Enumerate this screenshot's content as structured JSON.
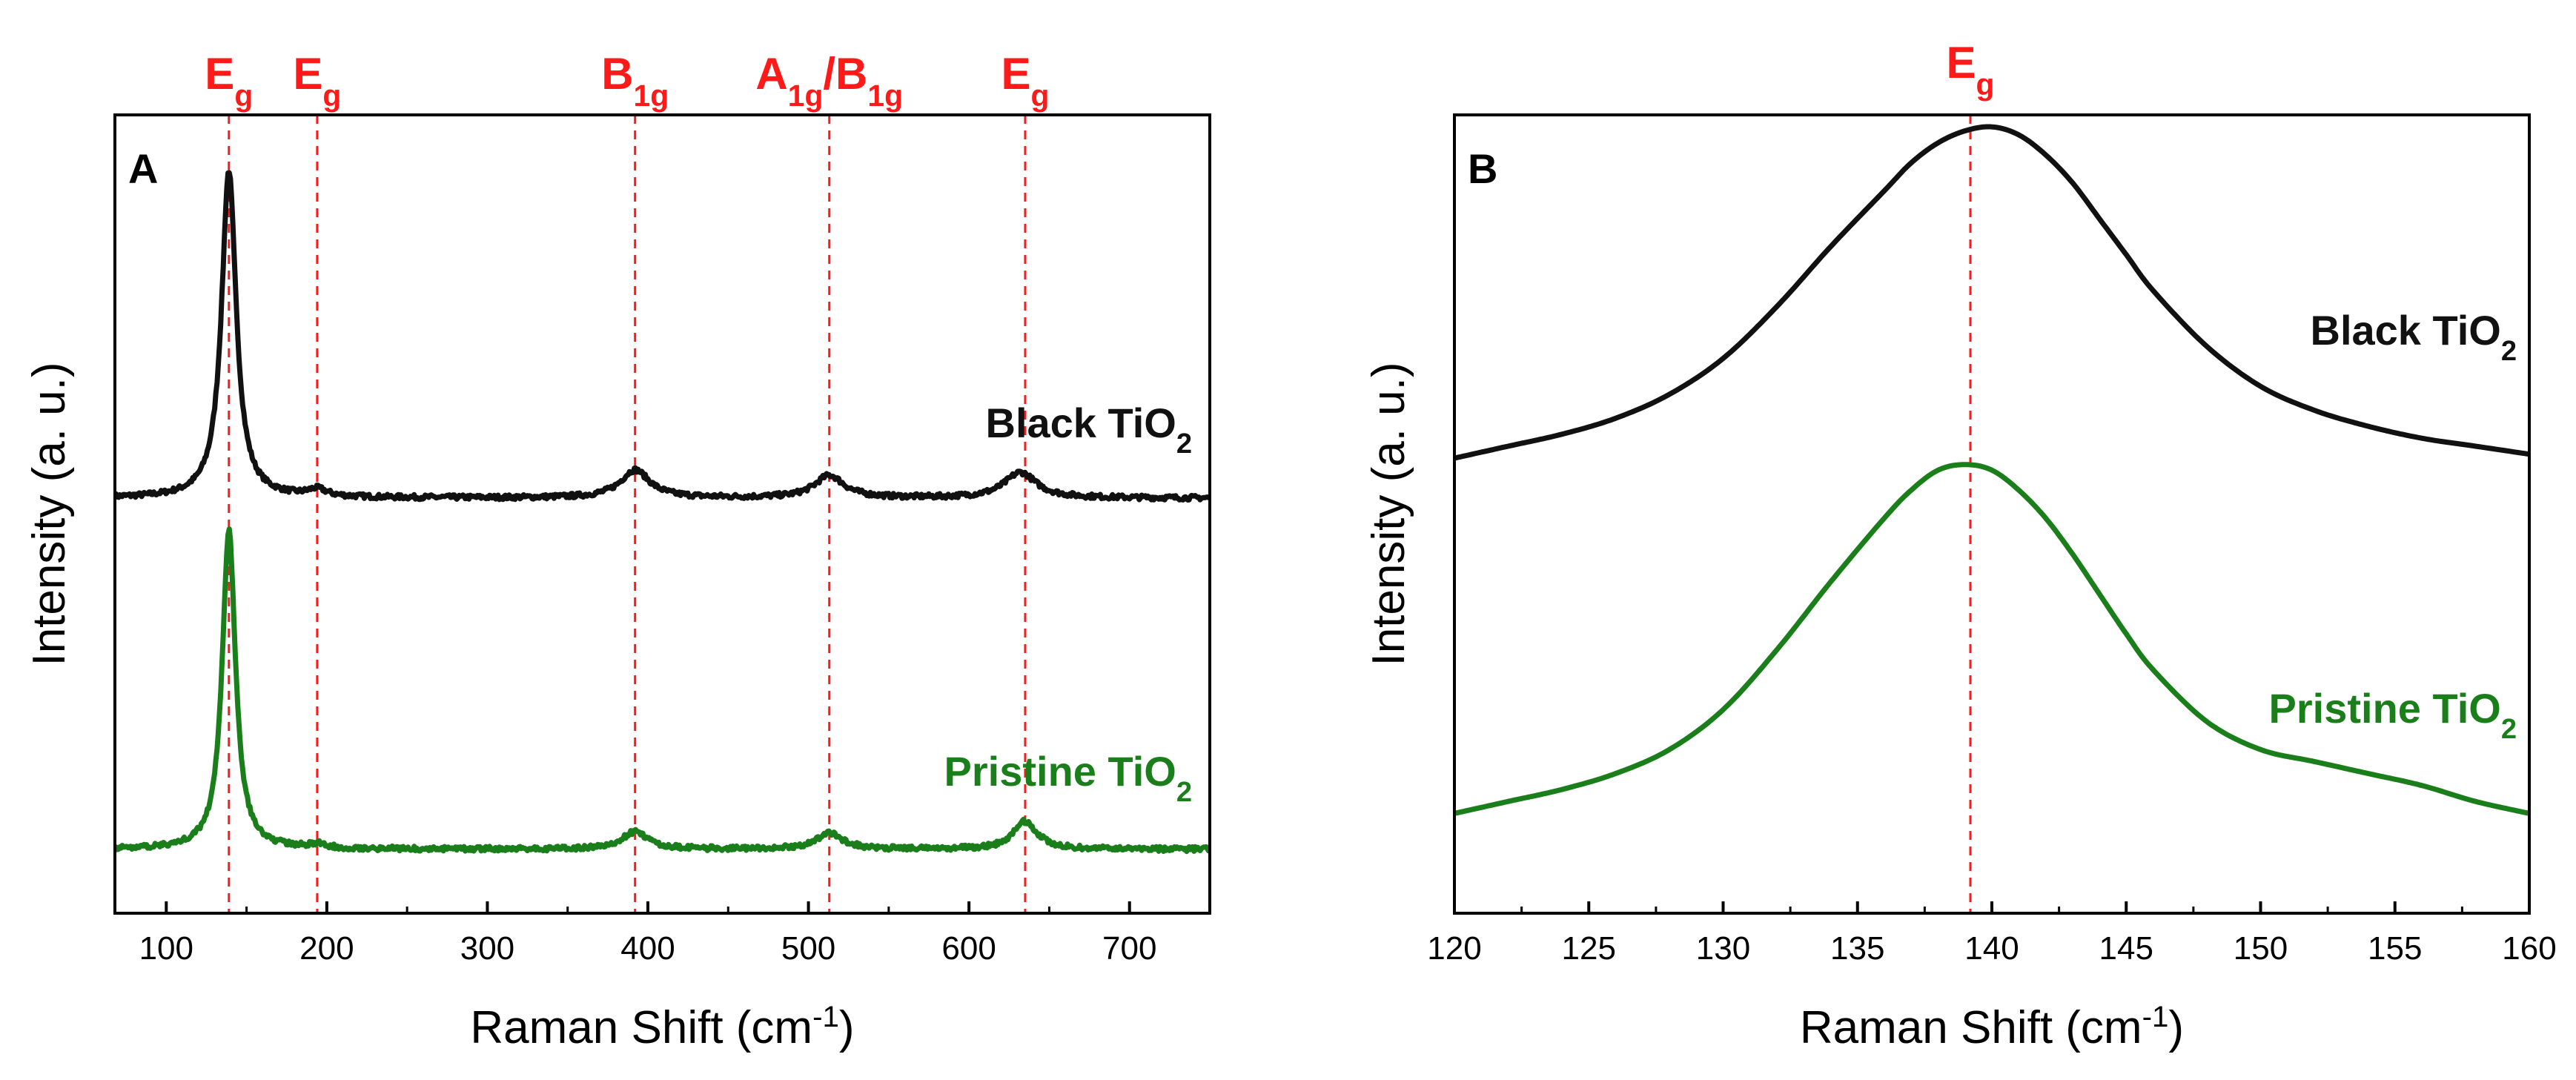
{
  "chart_data": [
    {
      "panel_label": "A",
      "type": "line",
      "xlabel": "Raman Shift",
      "xunit": "cm",
      "xunit_sup": "-1",
      "ylabel": "Intensity (a. u.)",
      "xlim": [
        68,
        750
      ],
      "ylim": [
        0,
        10
      ],
      "xticks": [
        100,
        200,
        300,
        400,
        500,
        600,
        700
      ],
      "yticks_shown": false,
      "reference_lines": [
        {
          "x": 139,
          "label_main": "E",
          "label_sub": "g",
          "label_rest": "",
          "label_rest_sub": ""
        },
        {
          "x": 194,
          "label_main": "E",
          "label_sub": "g",
          "label_rest": "",
          "label_rest_sub": ""
        },
        {
          "x": 392,
          "label_main": "B",
          "label_sub": "1g",
          "label_rest": "",
          "label_rest_sub": ""
        },
        {
          "x": 513,
          "label_main": "A",
          "label_sub": "1g",
          "label_rest": "/B",
          "label_rest_sub": "1g"
        },
        {
          "x": 635,
          "label_main": "E",
          "label_sub": "g",
          "label_rest": "",
          "label_rest_sub": ""
        }
      ],
      "series": [
        {
          "name": "Black TiO2",
          "label_main": "Black TiO",
          "label_sub": "2",
          "color": "#111111",
          "baseline": 5.2,
          "peaks": [
            {
              "center": 139,
              "height": 4.1,
              "width": 5.5
            },
            {
              "center": 194,
              "height": 0.09,
              "width": 7
            },
            {
              "center": 392,
              "height": 0.35,
              "width": 11
            },
            {
              "center": 513,
              "height": 0.28,
              "width": 11
            },
            {
              "center": 632,
              "height": 0.32,
              "width": 12
            }
          ]
        },
        {
          "name": "Pristine TiO2",
          "label_main": "Pristine TiO",
          "label_sub": "2",
          "color": "#1a7f1a",
          "baseline": 0.8,
          "peaks": [
            {
              "center": 139,
              "height": 4.0,
              "width": 5
            },
            {
              "center": 194,
              "height": 0.05,
              "width": 6
            },
            {
              "center": 392,
              "height": 0.22,
              "width": 10
            },
            {
              "center": 513,
              "height": 0.2,
              "width": 10
            },
            {
              "center": 635,
              "height": 0.35,
              "width": 9
            }
          ]
        }
      ]
    },
    {
      "panel_label": "B",
      "type": "line",
      "xlabel": "Raman Shift",
      "xunit": "cm",
      "xunit_sup": "-1",
      "ylabel": "Intensity (a. u.)",
      "xlim": [
        120,
        160
      ],
      "ylim": [
        0,
        10
      ],
      "xticks": [
        120,
        125,
        130,
        135,
        140,
        145,
        150,
        155,
        160
      ],
      "yticks_shown": false,
      "reference_lines": [
        {
          "x": 139.2,
          "label_main": "E",
          "label_sub": "g",
          "label_rest": "",
          "label_rest_sub": ""
        }
      ],
      "series": [
        {
          "name": "Black TiO2",
          "label_main": "Black TiO",
          "label_sub": "2",
          "color": "#111111",
          "x": [
            120,
            122,
            124,
            126,
            128,
            130,
            132,
            134,
            136,
            137,
            138,
            139,
            140,
            141,
            142,
            143,
            144,
            145,
            146,
            148,
            150,
            152,
            154,
            156,
            158,
            160
          ],
          "y": [
            5.7,
            5.85,
            6.0,
            6.2,
            6.5,
            6.95,
            7.6,
            8.35,
            9.05,
            9.4,
            9.65,
            9.8,
            9.85,
            9.75,
            9.5,
            9.15,
            8.7,
            8.25,
            7.8,
            7.1,
            6.6,
            6.3,
            6.1,
            5.95,
            5.85,
            5.75
          ]
        },
        {
          "name": "Pristine TiO2",
          "label_main": "Pristine TiO",
          "label_sub": "2",
          "color": "#1a7f1a",
          "x": [
            120,
            122,
            124,
            126,
            128,
            130,
            132,
            134,
            136,
            137,
            138,
            139,
            140,
            141,
            142,
            143,
            144,
            145,
            146,
            148,
            150,
            152,
            154,
            156,
            158,
            160
          ],
          "y": [
            1.25,
            1.4,
            1.55,
            1.75,
            2.05,
            2.55,
            3.3,
            4.15,
            4.95,
            5.3,
            5.55,
            5.62,
            5.55,
            5.3,
            4.95,
            4.5,
            4.0,
            3.5,
            3.05,
            2.4,
            2.05,
            1.9,
            1.75,
            1.6,
            1.4,
            1.25
          ]
        }
      ]
    }
  ]
}
